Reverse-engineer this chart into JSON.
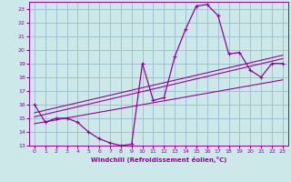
{
  "title": "",
  "xlabel": "Windchill (Refroidissement éolien,°C)",
  "xlim": [
    -0.5,
    23.5
  ],
  "ylim": [
    13,
    23.5
  ],
  "yticks": [
    13,
    14,
    15,
    16,
    17,
    18,
    19,
    20,
    21,
    22,
    23
  ],
  "xticks": [
    0,
    1,
    2,
    3,
    4,
    5,
    6,
    7,
    8,
    9,
    10,
    11,
    12,
    13,
    14,
    15,
    16,
    17,
    18,
    19,
    20,
    21,
    22,
    23
  ],
  "bg_color": "#cce8e8",
  "grid_color": "#99bbcc",
  "line_color": "#990099",
  "scatter_x": [
    0,
    1,
    2,
    3,
    4,
    5,
    6,
    7,
    8,
    9,
    10,
    11,
    12,
    13,
    14,
    15,
    16,
    17,
    18,
    19,
    20,
    21,
    22,
    23
  ],
  "scatter_y": [
    16.0,
    14.7,
    15.0,
    15.0,
    14.7,
    14.0,
    13.5,
    13.2,
    13.0,
    13.1,
    19.0,
    16.3,
    16.5,
    19.5,
    21.5,
    23.2,
    23.3,
    22.5,
    19.7,
    19.8,
    18.5,
    18.0,
    19.0,
    19.0
  ],
  "reg_lines": [
    [
      [
        0,
        15.1
      ],
      [
        23,
        19.35
      ]
    ],
    [
      [
        0,
        15.4
      ],
      [
        23,
        19.6
      ]
    ],
    [
      [
        0,
        14.6
      ],
      [
        23,
        17.8
      ]
    ]
  ]
}
